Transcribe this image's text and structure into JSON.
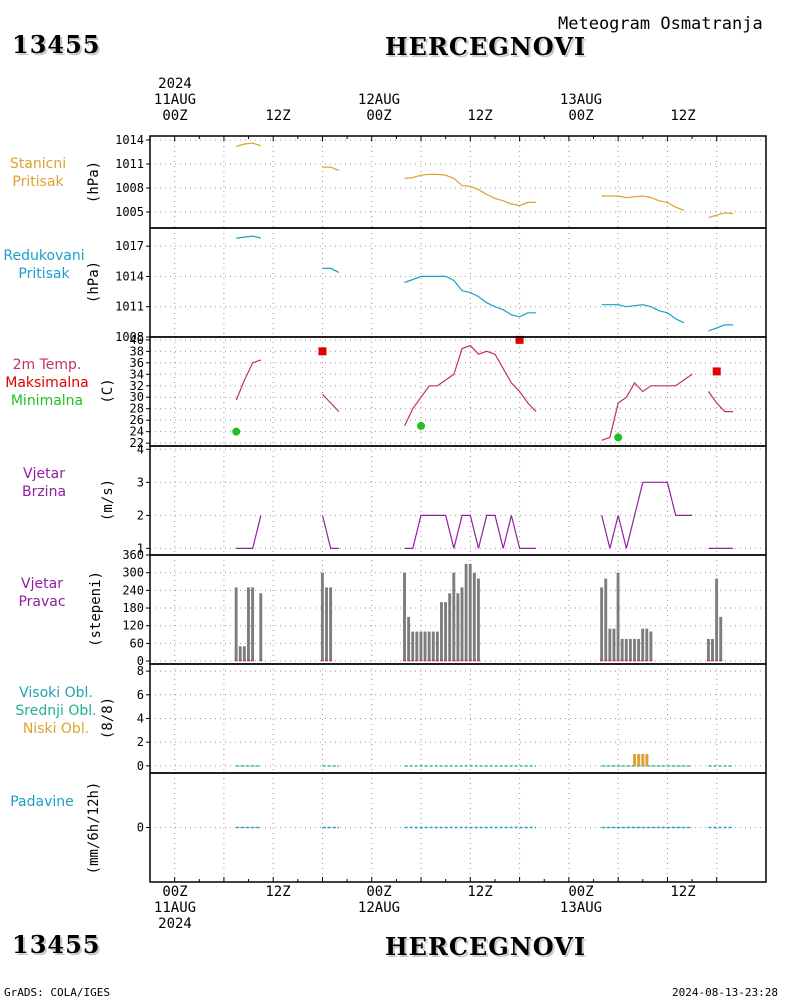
{
  "header": {
    "station_id": "13455",
    "station_name": "HERCEGNOVI",
    "meteogram_title": "Meteogram Osmatranja"
  },
  "footer": {
    "left": "GrADS: COLA/IGES",
    "right": "2024-08-13-23:28"
  },
  "time_axis": {
    "top_labels": [
      {
        "line1": "2024",
        "line2": "11AUG",
        "line3": "00Z"
      },
      {
        "line1": "",
        "line2": "",
        "line3": "12Z"
      },
      {
        "line1": "",
        "line2": "12AUG",
        "line3": "00Z"
      },
      {
        "line1": "",
        "line2": "",
        "line3": "12Z"
      },
      {
        "line1": "",
        "line2": "13AUG",
        "line3": "00Z"
      },
      {
        "line1": "",
        "line2": "",
        "line3": "12Z"
      }
    ],
    "bottom_labels": [
      {
        "line1": "00Z",
        "line2": "11AUG",
        "line3": "2024"
      },
      {
        "line1": "12Z",
        "line2": "",
        "line3": ""
      },
      {
        "line1": "00Z",
        "line2": "12AUG",
        "line3": ""
      },
      {
        "line1": "12Z",
        "line2": "",
        "line3": ""
      },
      {
        "line1": "00Z",
        "line2": "13AUG",
        "line3": ""
      },
      {
        "line1": "12Z",
        "line2": "",
        "line3": ""
      }
    ]
  },
  "panels": {
    "station_pressure": {
      "label1": "Stanicni",
      "label2": "Pritisak",
      "unit": "(hPa)",
      "color": "#e0a030"
    },
    "reduced_pressure": {
      "label1": "Redukovani",
      "label2": "Pritisak",
      "unit": "(hPa)",
      "color": "#1aa0c8"
    },
    "temperature": {
      "label1": "2m Temp.",
      "label2": "Maksimalna",
      "label3": "Minimalna",
      "unit": "(C)",
      "color1": "#c0306a",
      "color2": "#e00000",
      "color3": "#20c020"
    },
    "wind_speed": {
      "label1": "Vjetar",
      "label2": "Brzina",
      "unit": "(m/s)",
      "color": "#9020a0"
    },
    "wind_direction": {
      "label1": "Vjetar",
      "label2": "Pravac",
      "unit": "(stepeni)",
      "color": "#9020a0"
    },
    "clouds": {
      "label1": "Visoki Obl.",
      "label2": "Srednji Obl.",
      "label3": "Niski Obl.",
      "unit": "(8/8)",
      "color1": "#20a0b0",
      "color2": "#20b090",
      "color3": "#e0a030"
    },
    "precipitation": {
      "label1": "Padavine",
      "unit": "(mm/6h/12h)",
      "color": "#1aa0c8"
    }
  },
  "chart_data": [
    {
      "type": "line",
      "name": "station_pressure",
      "ylim": [
        1003,
        1014.5
      ],
      "yticks": [
        "1005",
        "1008",
        "1011",
        "1014"
      ],
      "ytick_values": [
        1005,
        1008,
        1011,
        1014
      ],
      "segments": [
        [
          [
            15,
            1013.2
          ],
          [
            17,
            1013.5
          ],
          [
            19,
            1013.6
          ],
          [
            21,
            1013.3
          ]
        ],
        [
          [
            36,
            1010.6
          ],
          [
            38,
            1010.6
          ],
          [
            40,
            1010.2
          ]
        ],
        [
          [
            56,
            1009.2
          ],
          [
            58,
            1009.3
          ],
          [
            60,
            1009.6
          ],
          [
            62,
            1009.7
          ],
          [
            64,
            1009.7
          ],
          [
            66,
            1009.6
          ],
          [
            68,
            1009.2
          ],
          [
            70,
            1008.3
          ],
          [
            72,
            1008.2
          ],
          [
            74,
            1007.8
          ],
          [
            76,
            1007.2
          ],
          [
            78,
            1006.7
          ],
          [
            80,
            1006.4
          ],
          [
            82,
            1006.0
          ],
          [
            84,
            1005.8
          ],
          [
            86,
            1006.2
          ],
          [
            88,
            1006.2
          ]
        ],
        [
          [
            104,
            1007.0
          ],
          [
            106,
            1007.0
          ],
          [
            108,
            1007.0
          ],
          [
            110,
            1006.8
          ],
          [
            112,
            1006.9
          ],
          [
            114,
            1007.0
          ],
          [
            116,
            1006.8
          ],
          [
            118,
            1006.4
          ],
          [
            120,
            1006.2
          ],
          [
            122,
            1005.6
          ],
          [
            124,
            1005.2
          ]
        ],
        [
          [
            130,
            1004.3
          ],
          [
            132,
            1004.6
          ],
          [
            134,
            1004.9
          ],
          [
            136,
            1004.8
          ]
        ]
      ]
    },
    {
      "type": "line",
      "name": "reduced_pressure",
      "ylim": [
        1008,
        1018.8
      ],
      "yticks": [
        "1008",
        "1011",
        "1014",
        "1017"
      ],
      "ytick_values": [
        1008,
        1011,
        1014,
        1017
      ],
      "segments": [
        [
          [
            15,
            1017.8
          ],
          [
            17,
            1017.9
          ],
          [
            19,
            1018.0
          ],
          [
            21,
            1017.8
          ]
        ],
        [
          [
            36,
            1014.8
          ],
          [
            38,
            1014.8
          ],
          [
            40,
            1014.4
          ]
        ],
        [
          [
            56,
            1013.4
          ],
          [
            58,
            1013.7
          ],
          [
            60,
            1014.0
          ],
          [
            62,
            1014.0
          ],
          [
            64,
            1014.0
          ],
          [
            66,
            1014.0
          ],
          [
            68,
            1013.6
          ],
          [
            70,
            1012.6
          ],
          [
            72,
            1012.4
          ],
          [
            74,
            1012.0
          ],
          [
            76,
            1011.4
          ],
          [
            78,
            1011.0
          ],
          [
            80,
            1010.7
          ],
          [
            82,
            1010.2
          ],
          [
            84,
            1010.0
          ],
          [
            86,
            1010.4
          ],
          [
            88,
            1010.4
          ]
        ],
        [
          [
            104,
            1011.2
          ],
          [
            106,
            1011.2
          ],
          [
            108,
            1011.2
          ],
          [
            110,
            1011.0
          ],
          [
            112,
            1011.1
          ],
          [
            114,
            1011.2
          ],
          [
            116,
            1011.0
          ],
          [
            118,
            1010.6
          ],
          [
            120,
            1010.4
          ],
          [
            122,
            1009.8
          ],
          [
            124,
            1009.4
          ]
        ],
        [
          [
            130,
            1008.6
          ],
          [
            132,
            1008.9
          ],
          [
            134,
            1009.2
          ],
          [
            136,
            1009.2
          ]
        ]
      ]
    },
    {
      "type": "line",
      "name": "temperature",
      "ylim": [
        21.5,
        40.5
      ],
      "yticks": [
        "22",
        "24",
        "26",
        "28",
        "30",
        "32",
        "34",
        "36",
        "38",
        "40"
      ],
      "ytick_values": [
        22,
        24,
        26,
        28,
        30,
        32,
        34,
        36,
        38,
        40
      ],
      "segments": [
        [
          [
            15,
            29.5
          ],
          [
            17,
            33
          ],
          [
            19,
            36
          ],
          [
            21,
            36.5
          ]
        ],
        [
          [
            36,
            30.5
          ],
          [
            38,
            29
          ],
          [
            40,
            27.5
          ]
        ],
        [
          [
            56,
            25
          ],
          [
            58,
            28
          ],
          [
            60,
            30
          ],
          [
            62,
            32
          ],
          [
            64,
            32
          ],
          [
            66,
            33
          ],
          [
            68,
            34
          ],
          [
            70,
            38.5
          ],
          [
            72,
            39
          ],
          [
            74,
            37.5
          ],
          [
            76,
            38
          ],
          [
            78,
            37.5
          ],
          [
            80,
            35
          ],
          [
            82,
            32.5
          ],
          [
            84,
            31
          ],
          [
            86,
            29
          ],
          [
            88,
            27.5
          ]
        ],
        [
          [
            104,
            22.5
          ],
          [
            106,
            23
          ],
          [
            108,
            29
          ],
          [
            110,
            30
          ],
          [
            112,
            32.5
          ],
          [
            114,
            31
          ],
          [
            116,
            32
          ],
          [
            118,
            32
          ],
          [
            120,
            32
          ],
          [
            122,
            32
          ],
          [
            124,
            33
          ],
          [
            126,
            34
          ]
        ],
        [
          [
            130,
            31
          ],
          [
            132,
            29
          ],
          [
            134,
            27.5
          ],
          [
            136,
            27.5
          ]
        ]
      ],
      "max_points": [
        [
          36,
          38
        ],
        [
          84,
          40
        ],
        [
          132,
          34.5
        ]
      ],
      "min_points": [
        [
          15,
          24
        ],
        [
          60,
          25
        ],
        [
          108,
          23
        ]
      ]
    },
    {
      "type": "line",
      "name": "wind_speed",
      "ylim": [
        0.8,
        4.1
      ],
      "yticks": [
        "1",
        "2",
        "3",
        "4"
      ],
      "ytick_values": [
        1,
        2,
        3,
        4
      ],
      "segments": [
        [
          [
            15,
            1
          ],
          [
            17,
            1
          ],
          [
            19,
            1
          ],
          [
            21,
            2
          ]
        ],
        [
          [
            36,
            2
          ],
          [
            38,
            1
          ],
          [
            40,
            1
          ]
        ],
        [
          [
            56,
            1
          ],
          [
            58,
            1
          ],
          [
            60,
            2
          ],
          [
            62,
            2
          ],
          [
            64,
            2
          ],
          [
            66,
            2
          ],
          [
            68,
            1
          ],
          [
            70,
            2
          ],
          [
            72,
            2
          ],
          [
            74,
            1
          ],
          [
            76,
            2
          ],
          [
            78,
            2
          ],
          [
            80,
            1
          ],
          [
            82,
            2
          ],
          [
            84,
            1
          ],
          [
            86,
            1
          ],
          [
            88,
            1
          ]
        ],
        [
          [
            104,
            2
          ],
          [
            106,
            1
          ],
          [
            108,
            2
          ],
          [
            110,
            1
          ],
          [
            112,
            2
          ],
          [
            114,
            3
          ],
          [
            116,
            3
          ],
          [
            118,
            3
          ],
          [
            120,
            3
          ],
          [
            122,
            2
          ],
          [
            124,
            2
          ],
          [
            126,
            2
          ]
        ],
        [
          [
            130,
            1
          ],
          [
            132,
            1
          ],
          [
            134,
            1
          ],
          [
            136,
            1
          ]
        ]
      ]
    },
    {
      "type": "bar",
      "name": "wind_direction",
      "ylim": [
        -10,
        360
      ],
      "yticks": [
        "0",
        "60",
        "120",
        "180",
        "240",
        "300",
        "360"
      ],
      "ytick_values": [
        0,
        60,
        120,
        180,
        240,
        300,
        360
      ],
      "bar_color": "#7d7d7d",
      "base_color": "#c0306a",
      "bars": [
        [
          15,
          250
        ],
        [
          16,
          50
        ],
        [
          17,
          50
        ],
        [
          18,
          250
        ],
        [
          19,
          250
        ],
        [
          21,
          230
        ],
        [
          36,
          300
        ],
        [
          37,
          250
        ],
        [
          38,
          250
        ],
        [
          56,
          300
        ],
        [
          57,
          150
        ],
        [
          58,
          100
        ],
        [
          59,
          100
        ],
        [
          60,
          100
        ],
        [
          61,
          100
        ],
        [
          62,
          100
        ],
        [
          63,
          100
        ],
        [
          64,
          100
        ],
        [
          65,
          200
        ],
        [
          66,
          200
        ],
        [
          67,
          230
        ],
        [
          68,
          300
        ],
        [
          69,
          230
        ],
        [
          70,
          250
        ],
        [
          71,
          330
        ],
        [
          72,
          330
        ],
        [
          73,
          300
        ],
        [
          74,
          280
        ],
        [
          104,
          250
        ],
        [
          105,
          280
        ],
        [
          106,
          110
        ],
        [
          107,
          110
        ],
        [
          108,
          300
        ],
        [
          109,
          75
        ],
        [
          110,
          75
        ],
        [
          111,
          75
        ],
        [
          112,
          75
        ],
        [
          113,
          75
        ],
        [
          114,
          110
        ],
        [
          115,
          110
        ],
        [
          116,
          100
        ],
        [
          130,
          75
        ],
        [
          131,
          75
        ],
        [
          132,
          280
        ],
        [
          133,
          150
        ]
      ]
    },
    {
      "type": "bar",
      "name": "clouds",
      "ylim": [
        -0.6,
        8.6
      ],
      "yticks": [
        "0",
        "2",
        "4",
        "6",
        "8"
      ],
      "ytick_values": [
        0,
        2,
        4,
        6,
        8
      ],
      "low_cloud_color": "#e0a030",
      "low_clouds": [
        [
          112,
          1
        ],
        [
          113,
          1
        ],
        [
          114,
          1
        ],
        [
          115,
          1
        ]
      ]
    },
    {
      "type": "line",
      "name": "precipitation",
      "ylim": [
        -1,
        1
      ],
      "yticks": [
        "0"
      ],
      "ytick_values": [
        0
      ]
    }
  ]
}
